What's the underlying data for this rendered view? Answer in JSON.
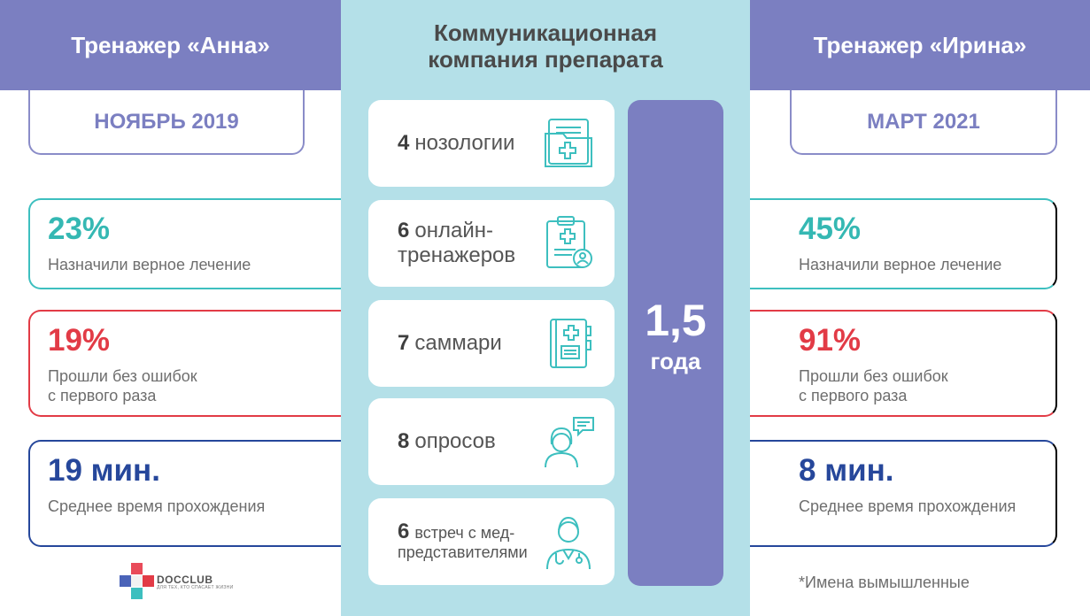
{
  "left": {
    "title": "Тренажер «Анна»",
    "date": "НОЯБРЬ 2019",
    "stats": [
      {
        "value": "23%",
        "label": "Назначили верное лечение"
      },
      {
        "value": "19%",
        "label": "Прошли без ошибок\nс первого раза"
      },
      {
        "value": "19 мин.",
        "label": "Среднее время прохождения"
      }
    ]
  },
  "right": {
    "title": "Тренажер «Ирина»",
    "date": "МАРТ 2021",
    "stats": [
      {
        "value": "45%",
        "label": "Назначили верное лечение"
      },
      {
        "value": "91%",
        "label": "Прошли без ошибок\nс первого раза"
      },
      {
        "value": "8 мин.",
        "label": "Среднее время прохождения"
      }
    ]
  },
  "center": {
    "title": "Коммуникационная\nкомпания препарата",
    "items": [
      {
        "count": "4",
        "text": "нозологии",
        "icon": "medical-folder-icon"
      },
      {
        "count": "6",
        "text": "онлайн-\nтренажеров",
        "icon": "clipboard-doctor-icon"
      },
      {
        "count": "7",
        "text": "саммари",
        "icon": "medical-notebook-icon"
      },
      {
        "count": "8",
        "text": "опросов",
        "icon": "woman-chat-icon"
      },
      {
        "count": "6",
        "text": "встреч с мед-\nпредставителями",
        "icon": "doctor-icon"
      }
    ],
    "duration_value": "1,5",
    "duration_unit": "года"
  },
  "footnote": "*Имена вымышленные",
  "logo": {
    "name": "DOCCLUB",
    "tagline": "ДЛЯ ТЕХ, КТО СПАСАЕТ ЖИЗНИ"
  },
  "colors": {
    "header": "#7b7fc1",
    "center_bg": "#b4e0e8",
    "teal": "#35b8b3",
    "red": "#e23b46",
    "navy": "#26479b"
  }
}
